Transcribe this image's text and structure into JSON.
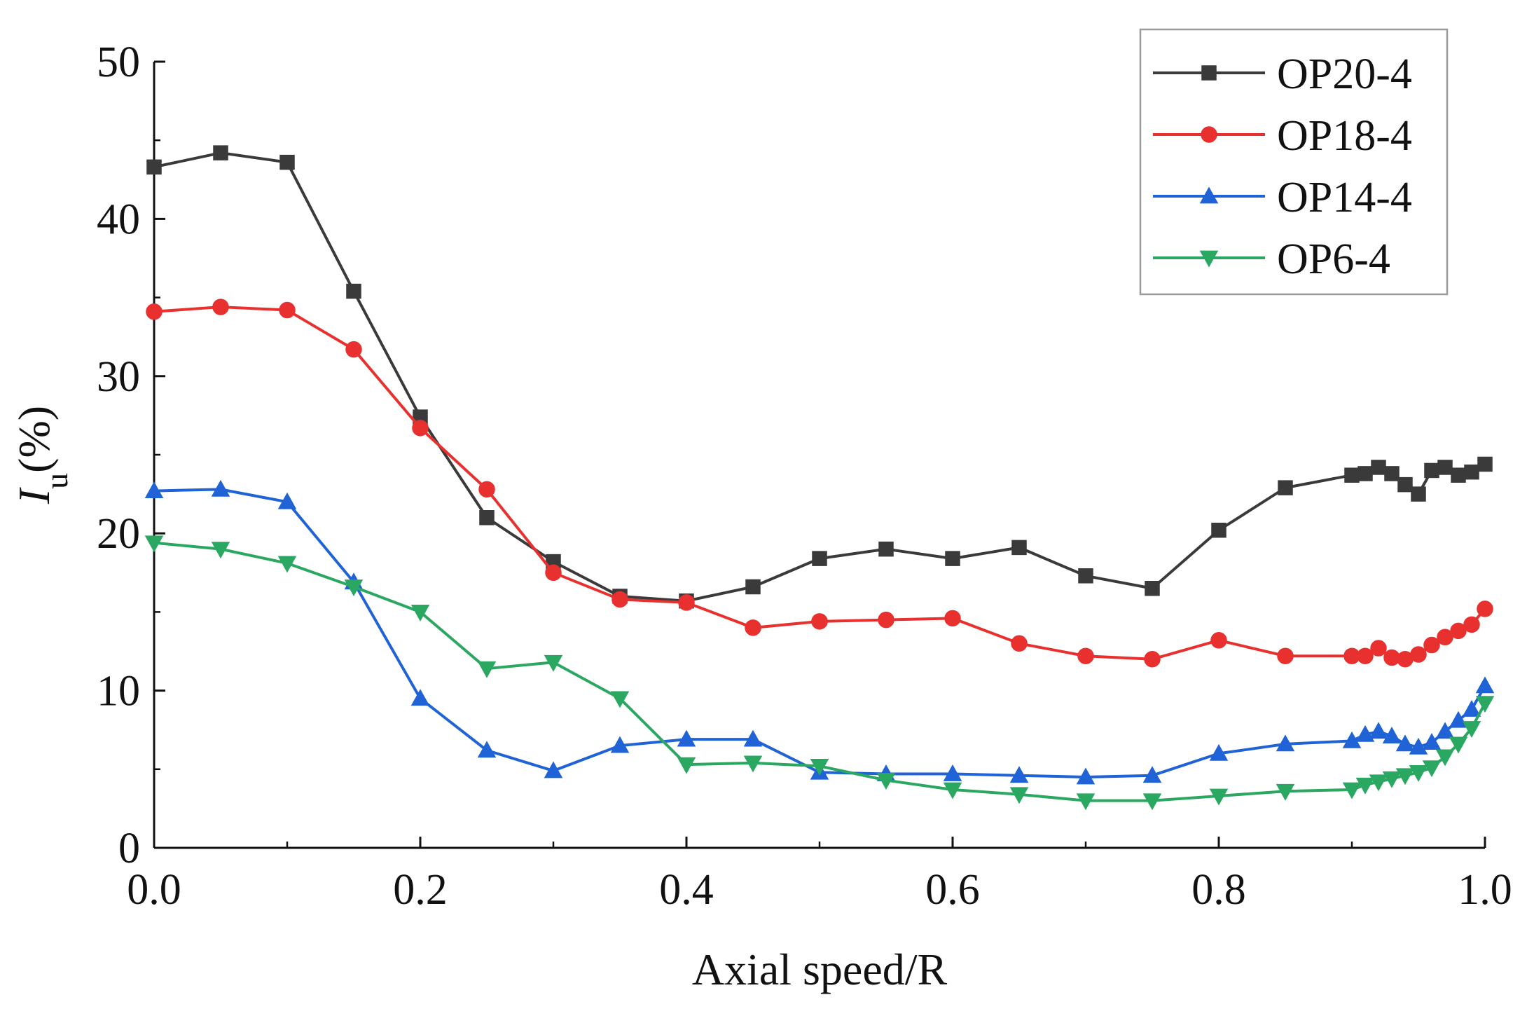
{
  "chart_data": {
    "type": "line",
    "title": "",
    "xlabel": "Axial speed/R",
    "ylabel_main": "I",
    "ylabel_sub": "u",
    "ylabel_unit": "(%)",
    "xlim": [
      0.0,
      1.0
    ],
    "ylim": [
      0,
      50
    ],
    "x_ticks": [
      "0.0",
      "0.2",
      "0.4",
      "0.6",
      "0.8",
      "1.0"
    ],
    "y_ticks": [
      "0",
      "10",
      "20",
      "30",
      "40",
      "50"
    ],
    "grid": false,
    "legend_position": "top-right",
    "series": [
      {
        "name": "OP20-4",
        "color": "#3a3a3a",
        "marker": "square",
        "x": [
          0.0,
          0.05,
          0.1,
          0.15,
          0.2,
          0.25,
          0.3,
          0.35,
          0.4,
          0.45,
          0.5,
          0.55,
          0.6,
          0.65,
          0.7,
          0.75,
          0.8,
          0.85,
          0.9,
          0.91,
          0.92,
          0.93,
          0.94,
          0.95,
          0.96,
          0.97,
          0.98,
          0.99,
          1.0
        ],
        "y": [
          43.3,
          44.2,
          43.6,
          35.4,
          27.4,
          21.0,
          18.2,
          16.0,
          15.7,
          16.6,
          18.4,
          19.0,
          18.4,
          19.1,
          17.3,
          16.5,
          20.2,
          22.9,
          23.7,
          23.8,
          24.2,
          23.8,
          23.1,
          22.5,
          24.0,
          24.2,
          23.7,
          23.9,
          24.4
        ]
      },
      {
        "name": "OP18-4",
        "color": "#e8302e",
        "marker": "circle",
        "x": [
          0.0,
          0.05,
          0.1,
          0.15,
          0.2,
          0.25,
          0.3,
          0.35,
          0.4,
          0.45,
          0.5,
          0.55,
          0.6,
          0.65,
          0.7,
          0.75,
          0.8,
          0.85,
          0.9,
          0.91,
          0.92,
          0.93,
          0.94,
          0.95,
          0.96,
          0.97,
          0.98,
          0.99,
          1.0
        ],
        "y": [
          34.1,
          34.4,
          34.2,
          31.7,
          26.7,
          22.8,
          17.5,
          15.8,
          15.6,
          14.0,
          14.4,
          14.5,
          14.6,
          13.0,
          12.2,
          12.0,
          13.2,
          12.2,
          12.2,
          12.2,
          12.7,
          12.1,
          12.0,
          12.3,
          12.9,
          13.4,
          13.8,
          14.2,
          15.2
        ]
      },
      {
        "name": "OP14-4",
        "color": "#1f63d6",
        "marker": "triangle-up",
        "x": [
          0.0,
          0.05,
          0.1,
          0.15,
          0.2,
          0.25,
          0.3,
          0.35,
          0.4,
          0.45,
          0.5,
          0.55,
          0.6,
          0.65,
          0.7,
          0.75,
          0.8,
          0.85,
          0.9,
          0.91,
          0.92,
          0.93,
          0.94,
          0.95,
          0.96,
          0.97,
          0.98,
          0.99,
          1.0
        ],
        "y": [
          22.7,
          22.8,
          22.0,
          16.9,
          9.5,
          6.2,
          4.9,
          6.5,
          6.9,
          6.9,
          4.8,
          4.7,
          4.7,
          4.6,
          4.5,
          4.6,
          6.0,
          6.6,
          6.8,
          7.2,
          7.4,
          7.1,
          6.6,
          6.4,
          6.7,
          7.4,
          8.1,
          8.8,
          10.3
        ]
      },
      {
        "name": "OP6-4",
        "color": "#2aa760",
        "marker": "triangle-down",
        "x": [
          0.0,
          0.05,
          0.1,
          0.15,
          0.2,
          0.25,
          0.3,
          0.35,
          0.4,
          0.45,
          0.5,
          0.55,
          0.6,
          0.65,
          0.7,
          0.75,
          0.8,
          0.85,
          0.9,
          0.91,
          0.92,
          0.93,
          0.94,
          0.95,
          0.96,
          0.97,
          0.98,
          0.99,
          1.0
        ],
        "y": [
          19.4,
          19.0,
          18.1,
          16.6,
          15.0,
          11.4,
          11.8,
          9.5,
          5.3,
          5.4,
          5.2,
          4.3,
          3.7,
          3.4,
          3.0,
          3.0,
          3.3,
          3.6,
          3.7,
          4.0,
          4.2,
          4.4,
          4.6,
          4.8,
          5.1,
          5.8,
          6.6,
          7.6,
          9.2
        ]
      }
    ]
  }
}
